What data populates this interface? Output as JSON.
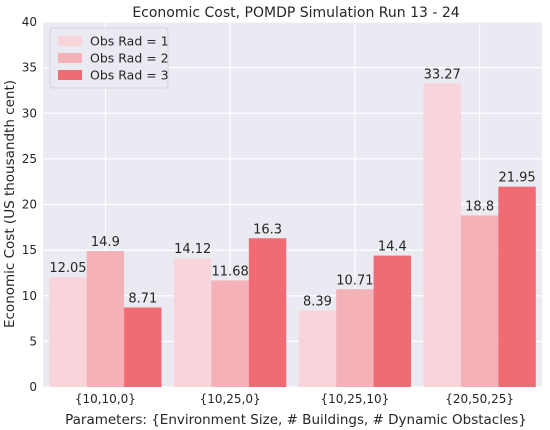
{
  "chart_data": {
    "type": "bar",
    "title": "Economic Cost, POMDP Simulation Run 13 - 24",
    "xlabel": "Parameters: {Environment Size, # Buildings, # Dynamic Obstacles}",
    "ylabel": "Economic Cost (US thousandth cent)",
    "categories": [
      "{10,10,0}",
      "{10,25,0}",
      "{10,25,10}",
      "{20,50,25}"
    ],
    "series": [
      {
        "name": "Obs Rad = 1",
        "color": "#f8d5da",
        "values": [
          12.05,
          14.12,
          8.39,
          33.27
        ],
        "labels": [
          "12.05",
          "14.12",
          "8.39",
          "33.27"
        ]
      },
      {
        "name": "Obs Rad = 2",
        "color": "#f4b1b8",
        "values": [
          14.9,
          11.68,
          10.71,
          18.8
        ],
        "labels": [
          "14.9",
          "11.68",
          "10.71",
          "18.8"
        ]
      },
      {
        "name": "Obs Rad = 3",
        "color": "#f06b74",
        "values": [
          8.71,
          16.3,
          14.4,
          21.95
        ],
        "labels": [
          "8.71",
          "16.3",
          "14.4",
          "21.95"
        ]
      }
    ],
    "ylim": [
      0,
      40
    ],
    "yticks": [
      0,
      5,
      10,
      15,
      20,
      25,
      30,
      35,
      40
    ],
    "ytick_labels": [
      "0",
      "5",
      "10",
      "15",
      "20",
      "25",
      "30",
      "35",
      "40"
    ],
    "grid": true,
    "plot_background": "#eaeaf2",
    "grid_color": "#ffffff",
    "legend_position": "top-left"
  }
}
